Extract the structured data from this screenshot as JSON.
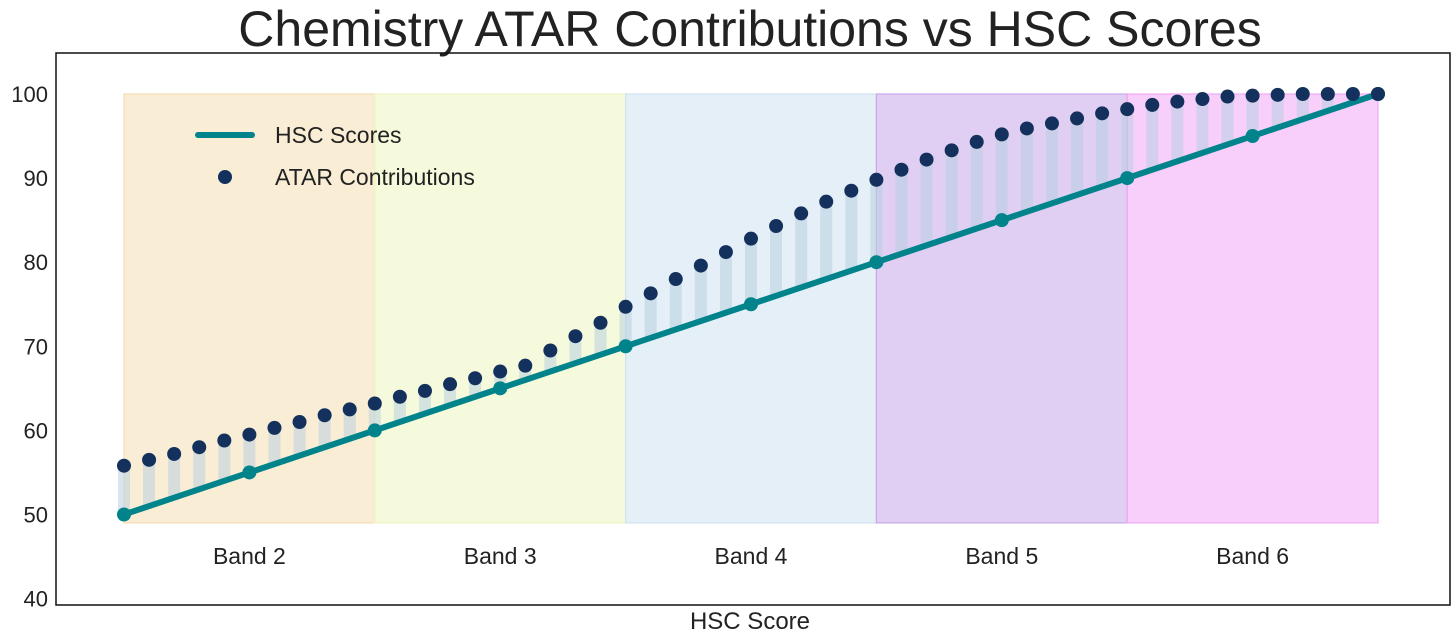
{
  "chart_data": {
    "type": "line",
    "title": "Chemistry ATAR Contributions vs HSC Scores",
    "xlabel": "HSC Score",
    "ylabel": "",
    "ylim": [
      40,
      105
    ],
    "yticks": [
      40,
      50,
      60,
      70,
      80,
      90,
      100
    ],
    "grid": false,
    "legend": {
      "placement": "upper-left",
      "entries": [
        "HSC Scores",
        "ATAR Contributions"
      ]
    },
    "bands": [
      {
        "label": "Band 2",
        "from": 50,
        "to": 60,
        "color": "#f5deb3"
      },
      {
        "label": "Band 3",
        "from": 60,
        "to": 70,
        "color": "#eef5c0"
      },
      {
        "label": "Band 4",
        "from": 70,
        "to": 80,
        "color": "#cfe2f0"
      },
      {
        "label": "Band 5",
        "from": 80,
        "to": 90,
        "color": "#c9a8ea"
      },
      {
        "label": "Band 6",
        "from": 90,
        "to": 100,
        "color": "#f0a8f5"
      }
    ],
    "band_ymin": 49,
    "band_ymax": 100,
    "series": [
      {
        "name": "HSC Scores",
        "type": "line",
        "color": "#00838a",
        "x": [
          50,
          55,
          60,
          65,
          70,
          75,
          80,
          85,
          90,
          95,
          100
        ],
        "y": [
          50,
          55,
          60,
          65,
          70,
          75,
          80,
          85,
          90,
          95,
          100
        ]
      },
      {
        "name": "ATAR Contributions",
        "type": "scatter",
        "color": "#13315c",
        "x": [
          50,
          51,
          52,
          53,
          54,
          55,
          56,
          57,
          58,
          59,
          60,
          61,
          62,
          63,
          64,
          65,
          66,
          67,
          68,
          69,
          70,
          71,
          72,
          73,
          74,
          75,
          76,
          77,
          78,
          79,
          80,
          81,
          82,
          83,
          84,
          85,
          86,
          87,
          88,
          89,
          90,
          91,
          92,
          93,
          94,
          95,
          96,
          97,
          98,
          99,
          100
        ],
        "y": [
          55.8,
          56.5,
          57.2,
          58.0,
          58.8,
          59.5,
          60.3,
          61.0,
          61.8,
          62.5,
          63.2,
          64.0,
          64.7,
          65.5,
          66.2,
          67.0,
          67.7,
          69.5,
          71.2,
          72.8,
          74.7,
          76.3,
          78.0,
          79.6,
          81.2,
          82.8,
          84.3,
          85.8,
          87.2,
          88.5,
          89.8,
          91.0,
          92.2,
          93.3,
          94.3,
          95.2,
          95.9,
          96.5,
          97.1,
          97.7,
          98.2,
          98.7,
          99.1,
          99.4,
          99.7,
          99.8,
          99.9,
          100.0,
          100.0,
          100.0,
          100.0
        ]
      }
    ],
    "gap_fill_color": "#b8cfe0"
  }
}
